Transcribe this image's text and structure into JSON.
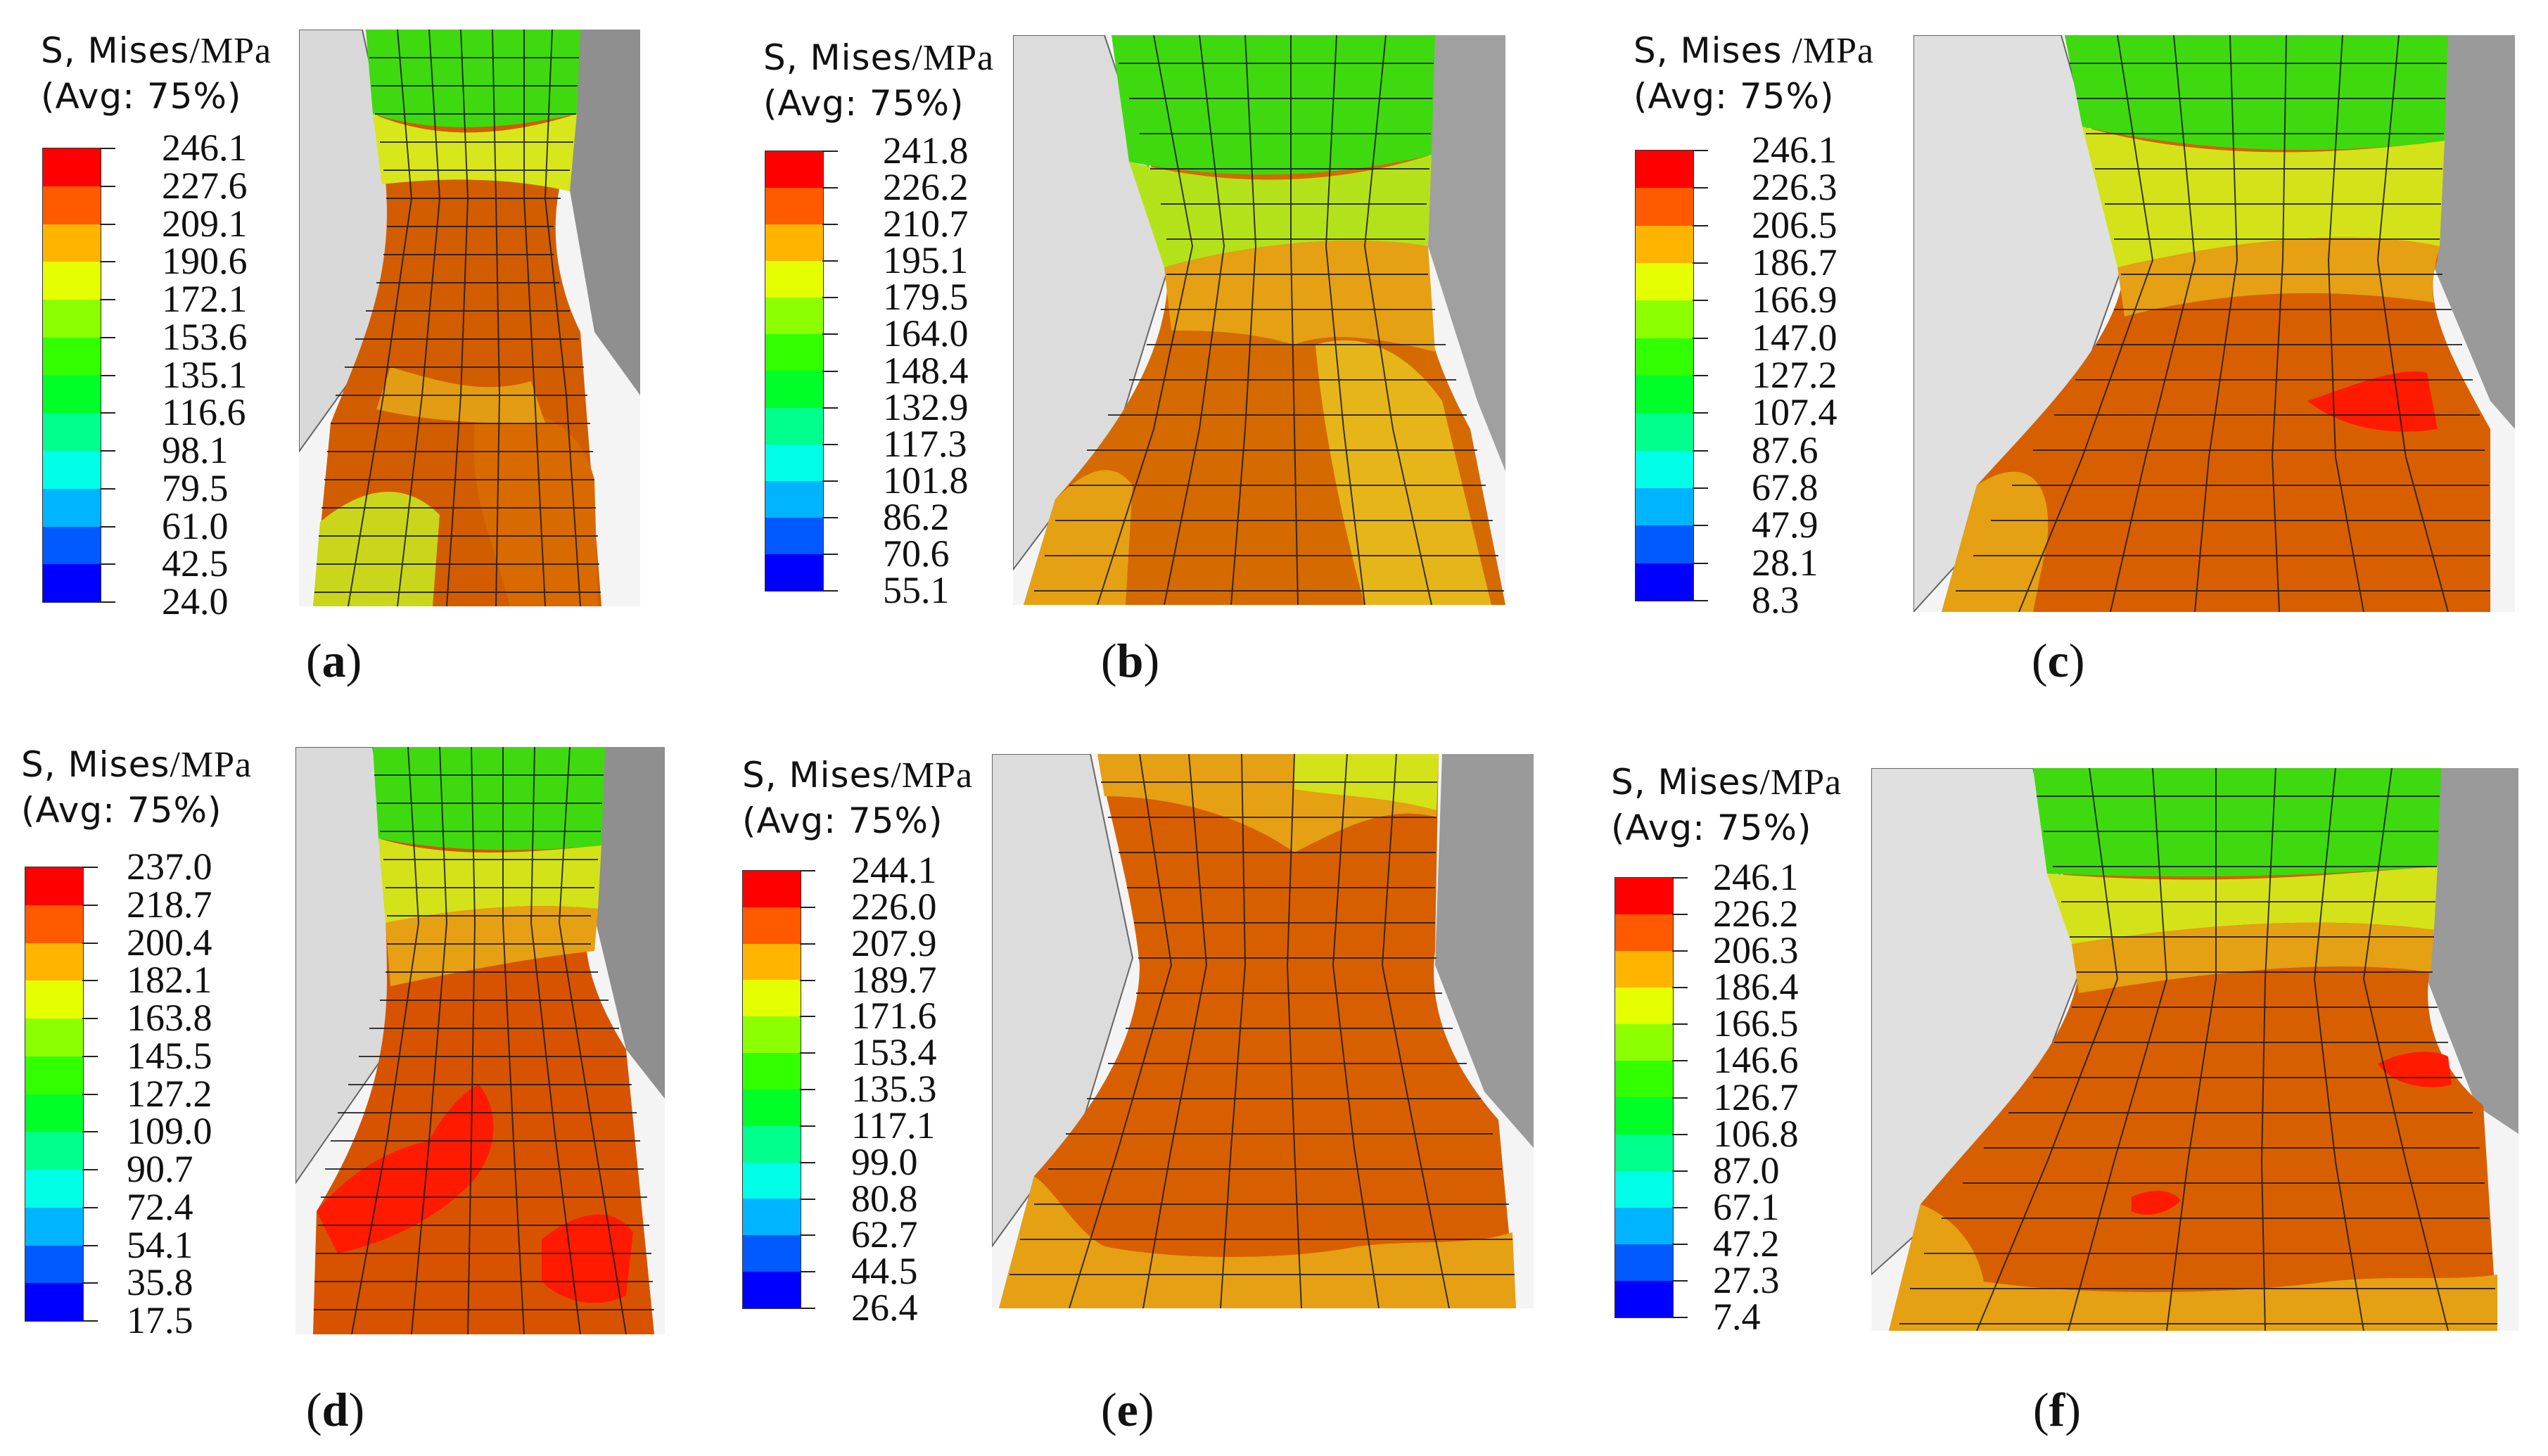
{
  "legend_title_line1_prefix": "S, Mises",
  "legend_title_line2": "(Avg: 75%)",
  "contour_colors": [
    "#ff0000",
    "#ff5a00",
    "#ffb400",
    "#e6ff00",
    "#8cff00",
    "#32ff00",
    "#00ff28",
    "#00ff8c",
    "#00ffe6",
    "#00b4ff",
    "#005aff",
    "#0000ff"
  ],
  "panels": [
    {
      "id": "a",
      "label": "a",
      "unit": "/MPa",
      "values": [
        "246.1",
        "227.6",
        "209.1",
        "190.6",
        "172.1",
        "153.6",
        "135.1",
        "116.6",
        "98.1",
        "79.5",
        "61.0",
        "42.5",
        "24.0"
      ]
    },
    {
      "id": "b",
      "label": "b",
      "unit": "/MPa",
      "values": [
        "241.8",
        "226.2",
        "210.7",
        "195.1",
        "179.5",
        "164.0",
        "148.4",
        "132.9",
        "117.3",
        "101.8",
        "86.2",
        "70.6",
        "55.1"
      ]
    },
    {
      "id": "c",
      "label": "c",
      "unit": " /MPa",
      "values": [
        "246.1",
        "226.3",
        "206.5",
        "186.7",
        "166.9",
        "147.0",
        "127.2",
        "107.4",
        "87.6",
        "67.8",
        "47.9",
        "28.1",
        "8.3"
      ]
    },
    {
      "id": "d",
      "label": "d",
      "unit": "/MPa",
      "values": [
        "237.0",
        "218.7",
        "200.4",
        "182.1",
        "163.8",
        "145.5",
        "127.2",
        "109.0",
        "90.7",
        "72.4",
        "54.1",
        "35.8",
        "17.5"
      ]
    },
    {
      "id": "e",
      "label": "e",
      "unit": "/MPa",
      "values": [
        "244.1",
        "226.0",
        "207.9",
        "189.7",
        "171.6",
        "153.4",
        "135.3",
        "117.1",
        "99.0",
        "80.8",
        "62.7",
        "44.5",
        "26.4"
      ]
    },
    {
      "id": "f",
      "label": "f",
      "unit": "/MPa",
      "values": [
        "246.1",
        "226.2",
        "206.3",
        "186.4",
        "166.5",
        "146.6",
        "126.7",
        "106.8",
        "87.0",
        "67.1",
        "47.2",
        "27.3",
        "7.4"
      ]
    }
  ]
}
